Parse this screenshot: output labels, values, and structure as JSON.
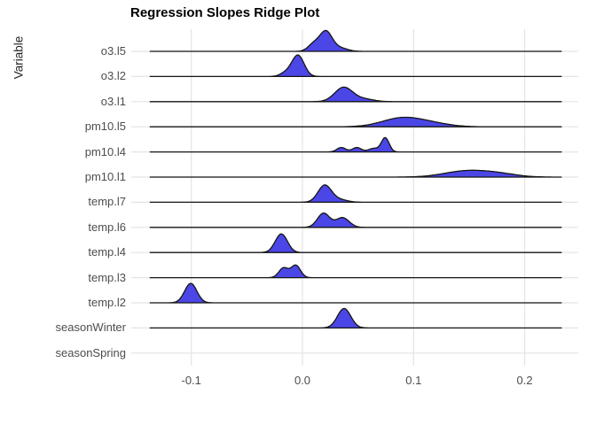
{
  "title": "Regression Slopes Ridge Plot",
  "chart_data": {
    "type": "area",
    "subtype": "ridgeline",
    "title": "Regression Slopes Ridge Plot",
    "xlabel": "",
    "ylabel": "Variable",
    "x_ticks": [
      -0.1,
      0.0,
      0.1,
      0.2
    ],
    "x_tick_labels": [
      "-0.1",
      "0.0",
      "0.1",
      "0.2"
    ],
    "xlim_panel": [
      -0.154,
      0.248
    ],
    "line_range": [
      -0.137,
      0.233
    ],
    "grid": true,
    "legend": "none",
    "background": "#ffffff",
    "colors": {
      "fill": "#4B46E6",
      "stroke": "#151515",
      "grid": "#e4e4e4",
      "axis_text": "#4d4d4d",
      "title_text": "#000000"
    },
    "rows": [
      {
        "label": "o3.l5",
        "peak_x": 0.021,
        "max_height": 24,
        "components": [
          {
            "mu": 0.01,
            "sigma": 0.005,
            "amp": 8
          },
          {
            "mu": 0.021,
            "sigma": 0.0055,
            "amp": 22
          },
          {
            "mu": 0.033,
            "sigma": 0.007,
            "amp": 4
          }
        ]
      },
      {
        "label": "o3.l2",
        "peak_x": -0.004,
        "max_height": 25,
        "components": [
          {
            "mu": -0.004,
            "sigma": 0.0055,
            "amp": 24
          },
          {
            "mu": -0.015,
            "sigma": 0.005,
            "amp": 4
          }
        ]
      },
      {
        "label": "o3.l1",
        "peak_x": 0.037,
        "max_height": 18,
        "components": [
          {
            "mu": 0.037,
            "sigma": 0.008,
            "amp": 16
          },
          {
            "mu": 0.055,
            "sigma": 0.009,
            "amp": 3
          }
        ]
      },
      {
        "label": "pm10.l5",
        "peak_x": 0.092,
        "max_height": 12,
        "components": [
          {
            "mu": 0.09,
            "sigma": 0.018,
            "amp": 10
          },
          {
            "mu": 0.118,
            "sigma": 0.016,
            "amp": 3
          }
        ]
      },
      {
        "label": "pm10.l4",
        "peak_x": 0.074,
        "max_height": 17,
        "components": [
          {
            "mu": 0.035,
            "sigma": 0.004,
            "amp": 5
          },
          {
            "mu": 0.049,
            "sigma": 0.004,
            "amp": 5
          },
          {
            "mu": 0.064,
            "sigma": 0.0045,
            "amp": 4
          },
          {
            "mu": 0.0745,
            "sigma": 0.0035,
            "amp": 16
          }
        ]
      },
      {
        "label": "pm10.l1",
        "peak_x": 0.15,
        "max_height": 8,
        "components": [
          {
            "mu": 0.148,
            "sigma": 0.02,
            "amp": 7
          },
          {
            "mu": 0.178,
            "sigma": 0.016,
            "amp": 3
          }
        ]
      },
      {
        "label": "temp.l7",
        "peak_x": 0.021,
        "max_height": 20,
        "components": [
          {
            "mu": 0.02,
            "sigma": 0.006,
            "amp": 19
          },
          {
            "mu": 0.033,
            "sigma": 0.007,
            "amp": 3
          }
        ]
      },
      {
        "label": "temp.l6",
        "peak_x": 0.018,
        "max_height": 16,
        "components": [
          {
            "mu": 0.019,
            "sigma": 0.0055,
            "amp": 16
          },
          {
            "mu": 0.036,
            "sigma": 0.006,
            "amp": 11
          }
        ]
      },
      {
        "label": "temp.l4",
        "peak_x": -0.019,
        "max_height": 21,
        "components": [
          {
            "mu": -0.019,
            "sigma": 0.0055,
            "amp": 21
          }
        ]
      },
      {
        "label": "temp.l3",
        "peak_x": -0.006,
        "max_height": 15,
        "components": [
          {
            "mu": -0.017,
            "sigma": 0.0042,
            "amp": 11
          },
          {
            "mu": -0.006,
            "sigma": 0.0042,
            "amp": 14
          }
        ]
      },
      {
        "label": "temp.l2",
        "peak_x": -0.1,
        "max_height": 22,
        "components": [
          {
            "mu": -0.1005,
            "sigma": 0.0055,
            "amp": 22
          }
        ]
      },
      {
        "label": "seasonWinter",
        "peak_x": 0.0375,
        "max_height": 22,
        "components": [
          {
            "mu": 0.0375,
            "sigma": 0.006,
            "amp": 22
          }
        ]
      },
      {
        "label": "seasonSpring",
        "peak_x": null,
        "max_height": 0,
        "components": []
      }
    ]
  }
}
